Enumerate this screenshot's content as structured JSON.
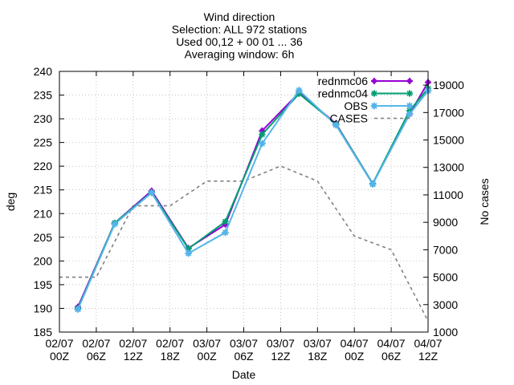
{
  "chart_data": {
    "type": "line",
    "title_lines": [
      "Wind direction",
      "Selection: ALL     972 stations",
      "Used 00,12 + 00 01 ... 36",
      "Averaging window:  6h"
    ],
    "xlabel": "Date",
    "ylabel": "deg",
    "y2label": "No cases",
    "x_ticks": [
      {
        "line1": "02/07",
        "line2": "00Z",
        "h": 0
      },
      {
        "line1": "02/07",
        "line2": "06Z",
        "h": 6
      },
      {
        "line1": "02/07",
        "line2": "12Z",
        "h": 12
      },
      {
        "line1": "02/07",
        "line2": "18Z",
        "h": 18
      },
      {
        "line1": "03/07",
        "line2": "00Z",
        "h": 24
      },
      {
        "line1": "03/07",
        "line2": "06Z",
        "h": 30
      },
      {
        "line1": "03/07",
        "line2": "12Z",
        "h": 36
      },
      {
        "line1": "03/07",
        "line2": "18Z",
        "h": 42
      },
      {
        "line1": "04/07",
        "line2": "00Z",
        "h": 48
      },
      {
        "line1": "04/07",
        "line2": "06Z",
        "h": 54
      },
      {
        "line1": "04/07",
        "line2": "12Z",
        "h": 60
      }
    ],
    "xlim": [
      0,
      60
    ],
    "ylim": [
      185,
      240
    ],
    "y_ticks": [
      185,
      190,
      195,
      200,
      205,
      210,
      215,
      220,
      225,
      230,
      235,
      240
    ],
    "y2lim": [
      1000,
      20000
    ],
    "y2_ticks": [
      1000,
      3000,
      5000,
      7000,
      9000,
      11000,
      13000,
      15000,
      17000,
      19000
    ],
    "legend_position": "top-right",
    "series": [
      {
        "name": "rednmc06",
        "axis": "y",
        "color": "#9400d3",
        "dash": "",
        "marker": "plus",
        "x": [
          3,
          9,
          15,
          21,
          27,
          33,
          39,
          45,
          51,
          57,
          63
        ],
        "y": [
          190.3,
          208.0,
          214.8,
          202.7,
          207.7,
          227.5,
          235.5,
          229.0,
          216.3,
          231.0,
          237.7
        ]
      },
      {
        "name": "rednmc04",
        "axis": "y",
        "color": "#009e73",
        "dash": "",
        "marker": "x",
        "x": [
          3,
          9,
          15,
          21,
          27,
          33,
          39,
          45,
          51,
          57,
          63
        ],
        "y": [
          190.0,
          208.0,
          214.5,
          202.6,
          208.3,
          226.7,
          235.3,
          228.9,
          216.3,
          231.7,
          236.4
        ]
      },
      {
        "name": "OBS",
        "axis": "y",
        "color": "#56b4e9",
        "dash": "",
        "marker": "star",
        "x": [
          3,
          9,
          15,
          21,
          27,
          33,
          39,
          45,
          51,
          57,
          63
        ],
        "y": [
          189.8,
          207.8,
          214.4,
          201.6,
          206.0,
          224.8,
          236.0,
          228.7,
          216.2,
          231.0,
          235.9
        ]
      },
      {
        "name": "CASES",
        "axis": "y2",
        "color": "#808080",
        "dash": "4,4",
        "marker": "none",
        "x": [
          0,
          6,
          12,
          18,
          24,
          30,
          36,
          42,
          48,
          54,
          60,
          63
        ],
        "y": [
          5000,
          5000,
          10200,
          10200,
          12000,
          12000,
          13100,
          12000,
          8000,
          7000,
          1800,
          1800
        ]
      }
    ]
  }
}
